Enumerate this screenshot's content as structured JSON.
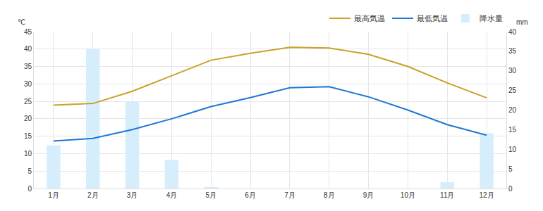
{
  "chart_data": {
    "type": "line",
    "ylabel": "℃",
    "y2label": "mm",
    "categories": [
      "1月",
      "2月",
      "3月",
      "4月",
      "5月",
      "6月",
      "7月",
      "8月",
      "9月",
      "10月",
      "11月",
      "12月"
    ],
    "series": [
      {
        "name": "最高気温",
        "type": "line",
        "color": "#c9a12a",
        "values": [
          23.9,
          24.4,
          27.9,
          32.3,
          36.8,
          38.8,
          40.5,
          40.3,
          38.5,
          35.0,
          30.3,
          26.0
        ]
      },
      {
        "name": "最低気温",
        "type": "line",
        "color": "#1e78d2",
        "values": [
          13.6,
          14.4,
          16.9,
          20.0,
          23.5,
          26.1,
          28.9,
          29.2,
          26.3,
          22.5,
          18.3,
          15.3
        ]
      },
      {
        "name": "降水量",
        "type": "bar",
        "axis": "y2",
        "color": "#d6eefc",
        "values": [
          11.0,
          35.5,
          22.1,
          7.3,
          0.4,
          0,
          0,
          0,
          0,
          0,
          1.6,
          14.1
        ]
      }
    ],
    "ylim": [
      0,
      45
    ],
    "yticks": [
      0,
      5,
      10,
      15,
      20,
      25,
      30,
      35,
      40,
      45
    ],
    "y2lim": [
      0,
      40
    ],
    "y2ticks": [
      0,
      5,
      10,
      15,
      20,
      25,
      30,
      35,
      40
    ],
    "grid": true,
    "legend": "top-right"
  }
}
